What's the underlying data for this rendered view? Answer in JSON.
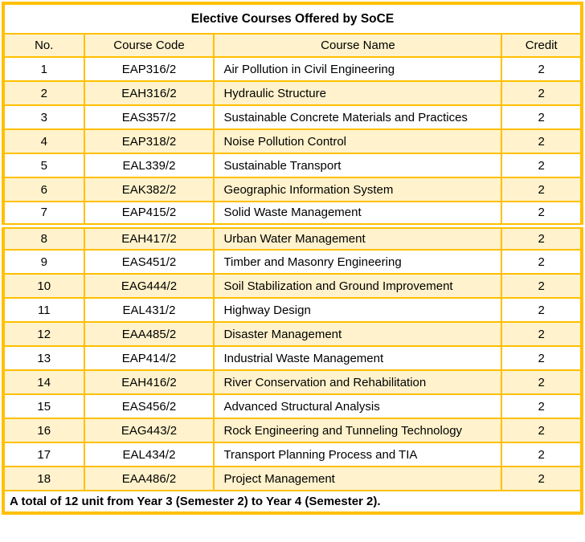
{
  "table": {
    "title": "Elective Courses Offered by SoCE",
    "columns": [
      "No.",
      "Course Code",
      "Course Name",
      "Credit"
    ],
    "rows": [
      {
        "no": "1",
        "code": "EAP316/2",
        "name": "Air Pollution in Civil Engineering",
        "credit": "2"
      },
      {
        "no": "2",
        "code": "EAH316/2",
        "name": "Hydraulic Structure",
        "credit": "2"
      },
      {
        "no": "3",
        "code": "EAS357/2",
        "name": "Sustainable Concrete Materials and Practices",
        "credit": "2"
      },
      {
        "no": "4",
        "code": "EAP318/2",
        "name": "Noise Pollution Control",
        "credit": "2"
      },
      {
        "no": "5",
        "code": "EAL339/2",
        "name": "Sustainable Transport",
        "credit": "2"
      },
      {
        "no": "6",
        "code": "EAK382/2",
        "name": "Geographic Information System",
        "credit": "2"
      },
      {
        "no": "7",
        "code": "EAP415/2",
        "name": "Solid Waste Management",
        "credit": "2"
      },
      {
        "no": "8",
        "code": "EAH417/2",
        "name": "Urban Water Management",
        "credit": "2"
      },
      {
        "no": "9",
        "code": "EAS451/2",
        "name": "Timber and Masonry Engineering",
        "credit": "2"
      },
      {
        "no": "10",
        "code": "EAG444/2",
        "name": "Soil Stabilization and Ground Improvement",
        "credit": "2"
      },
      {
        "no": "11",
        "code": "EAL431/2",
        "name": "Highway Design",
        "credit": "2"
      },
      {
        "no": "12",
        "code": "EAA485/2",
        "name": "Disaster Management",
        "credit": "2"
      },
      {
        "no": "13",
        "code": "EAP414/2",
        "name": "Industrial Waste Management",
        "credit": "2"
      },
      {
        "no": "14",
        "code": "EAH416/2",
        "name": "River Conservation and Rehabilitation",
        "credit": "2"
      },
      {
        "no": "15",
        "code": "EAS456/2",
        "name": "Advanced Structural Analysis",
        "credit": "2"
      },
      {
        "no": "16",
        "code": "EAG443/2",
        "name": "Rock Engineering and Tunneling Technology",
        "credit": "2"
      },
      {
        "no": "17",
        "code": "EAL434/2",
        "name": "Transport Planning Process and TIA",
        "credit": "2"
      },
      {
        "no": "18",
        "code": "EAA486/2",
        "name": "Project Management",
        "credit": "2"
      }
    ],
    "footer": "A total of 12 unit from Year 3 (Semester 2) to Year 4 (Semester 2).",
    "colors": {
      "border": "#FFC000",
      "banding": "#FFF2CC",
      "background": "#FFFFFF",
      "text": "#000000"
    }
  }
}
